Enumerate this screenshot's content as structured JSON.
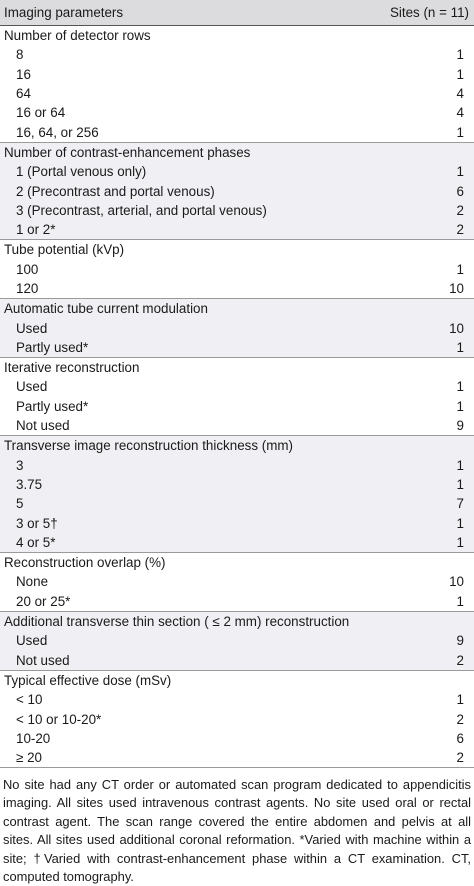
{
  "header": {
    "left": "Imaging parameters",
    "right": "Sites (n = 11)"
  },
  "sections": [
    {
      "title": "Number of detector rows",
      "shaded": false,
      "rows": [
        {
          "label": "8",
          "value": "1"
        },
        {
          "label": "16",
          "value": "1"
        },
        {
          "label": "64",
          "value": "4"
        },
        {
          "label": "16 or 64",
          "value": "4"
        },
        {
          "label": "16, 64, or 256",
          "value": "1"
        }
      ]
    },
    {
      "title": "Number of contrast-enhancement phases",
      "shaded": true,
      "rows": [
        {
          "label": "1 (Portal venous only)",
          "value": "1"
        },
        {
          "label": "2 (Precontrast and portal venous)",
          "value": "6"
        },
        {
          "label": "3 (Precontrast, arterial, and portal venous)",
          "value": "2"
        },
        {
          "label": "1 or 2*",
          "value": "2"
        }
      ]
    },
    {
      "title": "Tube potential (kVp)",
      "shaded": false,
      "rows": [
        {
          "label": "100",
          "value": "1"
        },
        {
          "label": "120",
          "value": "10"
        }
      ]
    },
    {
      "title": "Automatic tube current modulation",
      "shaded": true,
      "rows": [
        {
          "label": "Used",
          "value": "10"
        },
        {
          "label": "Partly used*",
          "value": "1"
        }
      ]
    },
    {
      "title": "Iterative reconstruction",
      "shaded": false,
      "rows": [
        {
          "label": "Used",
          "value": "1"
        },
        {
          "label": "Partly used*",
          "value": "1"
        },
        {
          "label": "Not used",
          "value": "9"
        }
      ]
    },
    {
      "title": "Transverse image reconstruction thickness (mm)",
      "shaded": true,
      "rows": [
        {
          "label": "3",
          "value": "1"
        },
        {
          "label": "3.75",
          "value": "1"
        },
        {
          "label": "5",
          "value": "7"
        },
        {
          "label": "3 or 5†",
          "value": "1"
        },
        {
          "label": "4 or 5*",
          "value": "1"
        }
      ]
    },
    {
      "title": "Reconstruction overlap (%)",
      "shaded": false,
      "rows": [
        {
          "label": "None",
          "value": "10"
        },
        {
          "label": "20 or 25*",
          "value": "1"
        }
      ]
    },
    {
      "title": "Additional transverse thin section ( ≤ 2 mm) reconstruction",
      "shaded": true,
      "rows": [
        {
          "label": "Used",
          "value": "9"
        },
        {
          "label": "Not used",
          "value": "2"
        }
      ]
    },
    {
      "title": "Typical effective dose (mSv)",
      "shaded": false,
      "rows": [
        {
          "label": "< 10",
          "value": "1"
        },
        {
          "label": "< 10 or 10-20*",
          "value": "2"
        },
        {
          "label": "10-20",
          "value": "6"
        },
        {
          "label": "≥ 20",
          "value": "2"
        }
      ]
    }
  ],
  "footnote": "No site had any CT order or automated scan program dedicated to appendicitis imaging. All sites used intravenous contrast agents. No site used oral or rectal contrast agent. The scan range covered the entire abdomen and pelvis at all sites. All sites used additional coronal reformation. *Varied with machine within a site; †Varied with contrast-enhancement phase within a CT examination. CT, computed tomography."
}
